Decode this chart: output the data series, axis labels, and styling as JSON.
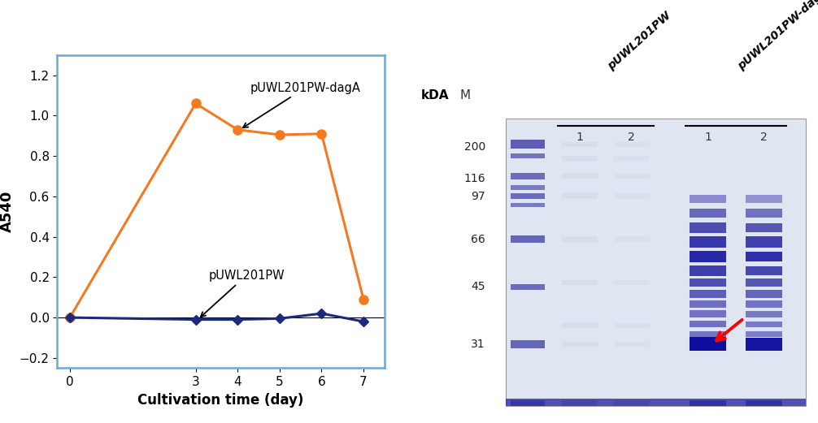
{
  "orange_x": [
    0,
    3,
    4,
    5,
    6,
    7
  ],
  "orange_y": [
    0.0,
    1.06,
    0.93,
    0.905,
    0.91,
    0.09
  ],
  "blue_x": [
    0,
    3,
    4,
    5,
    6,
    7
  ],
  "blue_y": [
    0.0,
    -0.01,
    -0.01,
    -0.005,
    0.02,
    -0.02
  ],
  "orange_color": "#F47920",
  "blue_color": "#1B2A7B",
  "xlabel": "Cultivation time (day)",
  "ylabel": "A540",
  "ylim": [
    -0.25,
    1.3
  ],
  "xlim": [
    -0.3,
    7.5
  ],
  "xticks": [
    0,
    3,
    4,
    5,
    6,
    7
  ],
  "yticks": [
    -0.2,
    0,
    0.2,
    0.4,
    0.6,
    0.8,
    1.0,
    1.2
  ],
  "label_daga": "pUWL201PW-dagA",
  "label_pw": "pUWL201PW",
  "background_color": "#FFFFFF",
  "plot_box_color": "#6EA8D5",
  "gel_bg_color": "#E8ECF5"
}
